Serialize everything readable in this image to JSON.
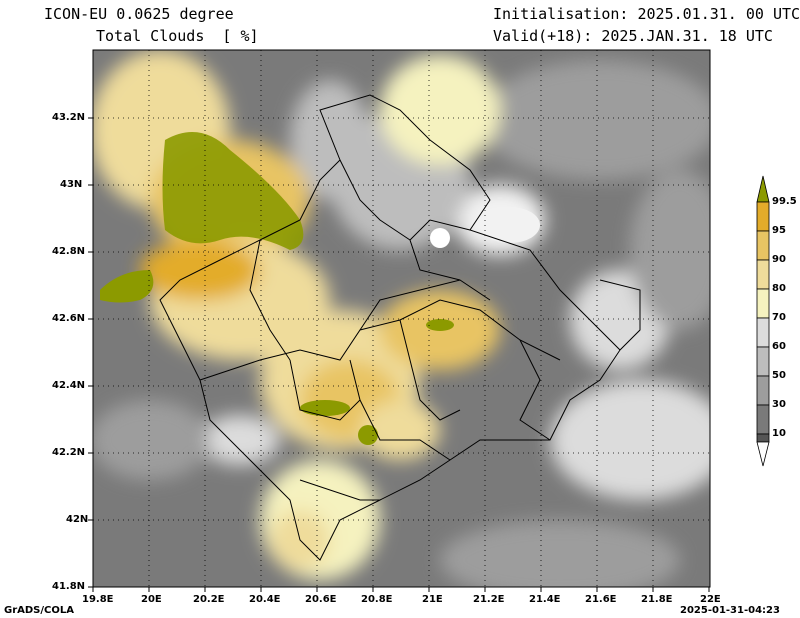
{
  "header": {
    "model": "ICON-EU 0.0625 degree",
    "variable": "Total Clouds  [ %]",
    "init": "Initialisation: 2025.01.31. 00 UTC",
    "valid": "Valid(+18): 2025.JAN.31. 18 UTC"
  },
  "footer": {
    "left": "GrADS/COLA",
    "right": "2025-01-31-04:23"
  },
  "axes": {
    "lon_ticks": [
      "19.8E",
      "20E",
      "20.2E",
      "20.4E",
      "20.6E",
      "20.8E",
      "21E",
      "21.2E",
      "21.4E",
      "21.6E",
      "21.8E",
      "22E"
    ],
    "lat_ticks": [
      "43.2N",
      "43N",
      "42.8N",
      "42.6N",
      "42.4N",
      "42.2N",
      "42N",
      "41.8N"
    ]
  },
  "colorbar": {
    "labels": [
      "99.5",
      "95",
      "90",
      "80",
      "70",
      "60",
      "50",
      "30",
      "10"
    ],
    "colors": [
      "#8c9a00",
      "#e3ac2a",
      "#e8c463",
      "#efdc9b",
      "#f5f2bf",
      "#dcdcdc",
      "#bdbdbd",
      "#9d9d9d",
      "#7a7a7a",
      "#555555",
      "#ffffff"
    ]
  },
  "colors": {
    "frame": "#000000",
    "border": "#000000"
  }
}
